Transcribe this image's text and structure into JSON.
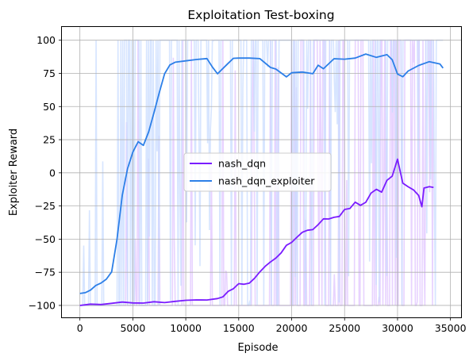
{
  "chart_data": {
    "type": "line",
    "title": "Exploitation Test-boxing",
    "xlabel": "Episode",
    "ylabel": "Exploiter Reward",
    "xlim": [
      -1700,
      36000
    ],
    "ylim": [
      -109,
      110
    ],
    "xticks": [
      0,
      5000,
      10000,
      15000,
      20000,
      25000,
      30000,
      35000
    ],
    "yticks": [
      -100,
      -75,
      -50,
      -25,
      0,
      25,
      50,
      75,
      100
    ],
    "grid": true,
    "legend_position": "center",
    "series": [
      {
        "name": "nash_dqn",
        "color": "#7a1cff",
        "raw_color": "#e0c4ff",
        "x": [
          0,
          1000,
          2000,
          3000,
          4000,
          5000,
          6000,
          7000,
          8000,
          9000,
          10000,
          11000,
          12000,
          13000,
          13500,
          14000,
          14500,
          15000,
          15500,
          16000,
          16500,
          17000,
          17500,
          18000,
          18500,
          19000,
          19500,
          20000,
          20500,
          21000,
          21500,
          22000,
          22500,
          23000,
          23500,
          24000,
          24500,
          25000,
          25500,
          26000,
          26500,
          27000,
          27500,
          28000,
          28500,
          29000,
          29500,
          30000,
          30500,
          31000,
          31500,
          32000,
          32300,
          32500,
          33000,
          33400
        ],
        "y": [
          -100,
          -99.5,
          -99,
          -98.5,
          -98,
          -98,
          -98,
          -97.5,
          -97.5,
          -97,
          -96,
          -96,
          -95.5,
          -95,
          -94,
          -89,
          -87,
          -83,
          -84,
          -83,
          -80,
          -75,
          -71,
          -67,
          -64,
          -60,
          -55,
          -53,
          -49,
          -45,
          -43,
          -43,
          -39,
          -35,
          -35,
          -33,
          -33,
          -28,
          -27,
          -22,
          -25,
          -22,
          -15,
          -12,
          -14,
          -6,
          -2,
          10,
          -8,
          -11,
          -13,
          -17,
          -25,
          -11,
          -10,
          -11
        ]
      },
      {
        "name": "nash_dqn_exploiter",
        "color": "#2c7fe8",
        "raw_color": "#c9dcff",
        "x": [
          0,
          500,
          1000,
          1500,
          2000,
          2500,
          3000,
          3500,
          4000,
          4500,
          5000,
          5500,
          6000,
          6500,
          7000,
          7500,
          8000,
          8500,
          9000,
          10000,
          11000,
          12000,
          12500,
          13000,
          14000,
          14500,
          15000,
          16000,
          17000,
          18000,
          18500,
          19000,
          19500,
          20000,
          21000,
          22000,
          22500,
          23000,
          24000,
          25000,
          26000,
          27000,
          28000,
          29000,
          29500,
          30000,
          30500,
          31000,
          32000,
          33000,
          34000,
          34300
        ],
        "y": [
          -91,
          -90,
          -88,
          -85,
          -83,
          -80,
          -75,
          -50,
          -17,
          3,
          16,
          24,
          21,
          31,
          46,
          60,
          75,
          81,
          84,
          85,
          85,
          86,
          80,
          75,
          82,
          86,
          86,
          86,
          86,
          79,
          78,
          75,
          72,
          76,
          76,
          75,
          81,
          79,
          86,
          86,
          86,
          90,
          87,
          89,
          85,
          74,
          72,
          77,
          81,
          84,
          82,
          79
        ]
      }
    ]
  }
}
